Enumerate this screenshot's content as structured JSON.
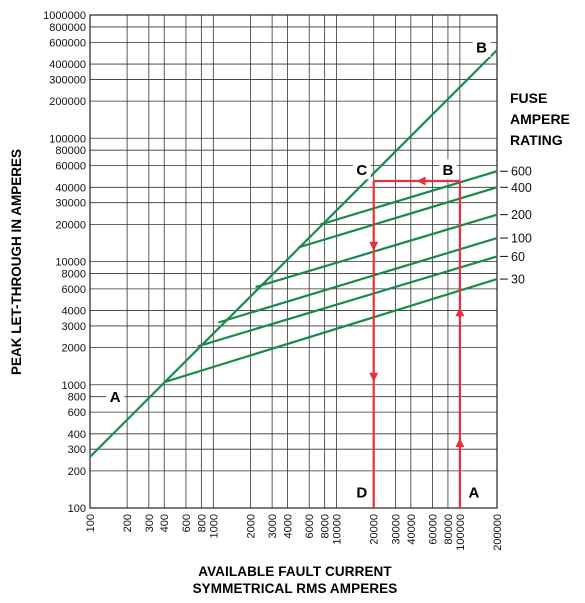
{
  "chart_data": {
    "type": "line",
    "scale": "log-log",
    "xlabel_line1": "AVAILABLE FAULT CURRENT",
    "xlabel_line2": "SYMMETRICAL RMS AMPERES",
    "ylabel": "PEAK LET-THROUGH IN AMPERES",
    "legend_title": [
      "FUSE",
      "AMPERE",
      "RATING"
    ],
    "xlim": [
      100,
      200000
    ],
    "ylim": [
      100,
      1000000
    ],
    "x_ticks": [
      "100",
      "200",
      "300",
      "400",
      "600",
      "800",
      "1000",
      "2000",
      "3000",
      "4000",
      "6000",
      "8000",
      "10000",
      "20000",
      "30000",
      "40000",
      "60000",
      "80000",
      "100000",
      "200000"
    ],
    "y_ticks": [
      "100",
      "200",
      "300",
      "400",
      "600",
      "800",
      "1000",
      "2000",
      "3000",
      "4000",
      "6000",
      "8000",
      "10000",
      "20000",
      "30000",
      "40000",
      "60000",
      "80000",
      "100000",
      "200000",
      "300000",
      "400000",
      "600000",
      "800000",
      "1000000"
    ],
    "grid": true,
    "line_color": "#1a8a4a",
    "arrow_color": "#e8303c",
    "series": [
      {
        "name": "600",
        "x": [
          7400,
          200000
        ],
        "y": [
          20000,
          54000
        ]
      },
      {
        "name": "400",
        "x": [
          4900,
          200000
        ],
        "y": [
          13000,
          40000
        ]
      },
      {
        "name": "200",
        "x": [
          2200,
          200000
        ],
        "y": [
          6200,
          24000
        ]
      },
      {
        "name": "100",
        "x": [
          1100,
          200000
        ],
        "y": [
          3200,
          15500
        ]
      },
      {
        "name": "60",
        "x": [
          750,
          200000
        ],
        "y": [
          2050,
          11000
        ]
      },
      {
        "name": "30",
        "x": [
          400,
          200000
        ],
        "y": [
          1050,
          7200
        ]
      }
    ],
    "ab_line": {
      "x": [
        100,
        200000
      ],
      "y": [
        260,
        520000
      ]
    },
    "path": [
      {
        "x": 100000,
        "y": 100
      },
      {
        "x": 100000,
        "y": 45000
      },
      {
        "x": 20000,
        "y": 45000
      },
      {
        "x": 20000,
        "y": 100
      }
    ],
    "point_labels": [
      {
        "text": "A",
        "x": 160,
        "y": 800
      },
      {
        "text": "B",
        "x": 150000,
        "y": 550000
      },
      {
        "text": "C",
        "x": 16000,
        "y": 56000
      },
      {
        "text": "B",
        "x": 80000,
        "y": 56000
      },
      {
        "text": "D",
        "x": 16000,
        "y": 135
      },
      {
        "text": "A",
        "x": 130000,
        "y": 135
      }
    ]
  }
}
